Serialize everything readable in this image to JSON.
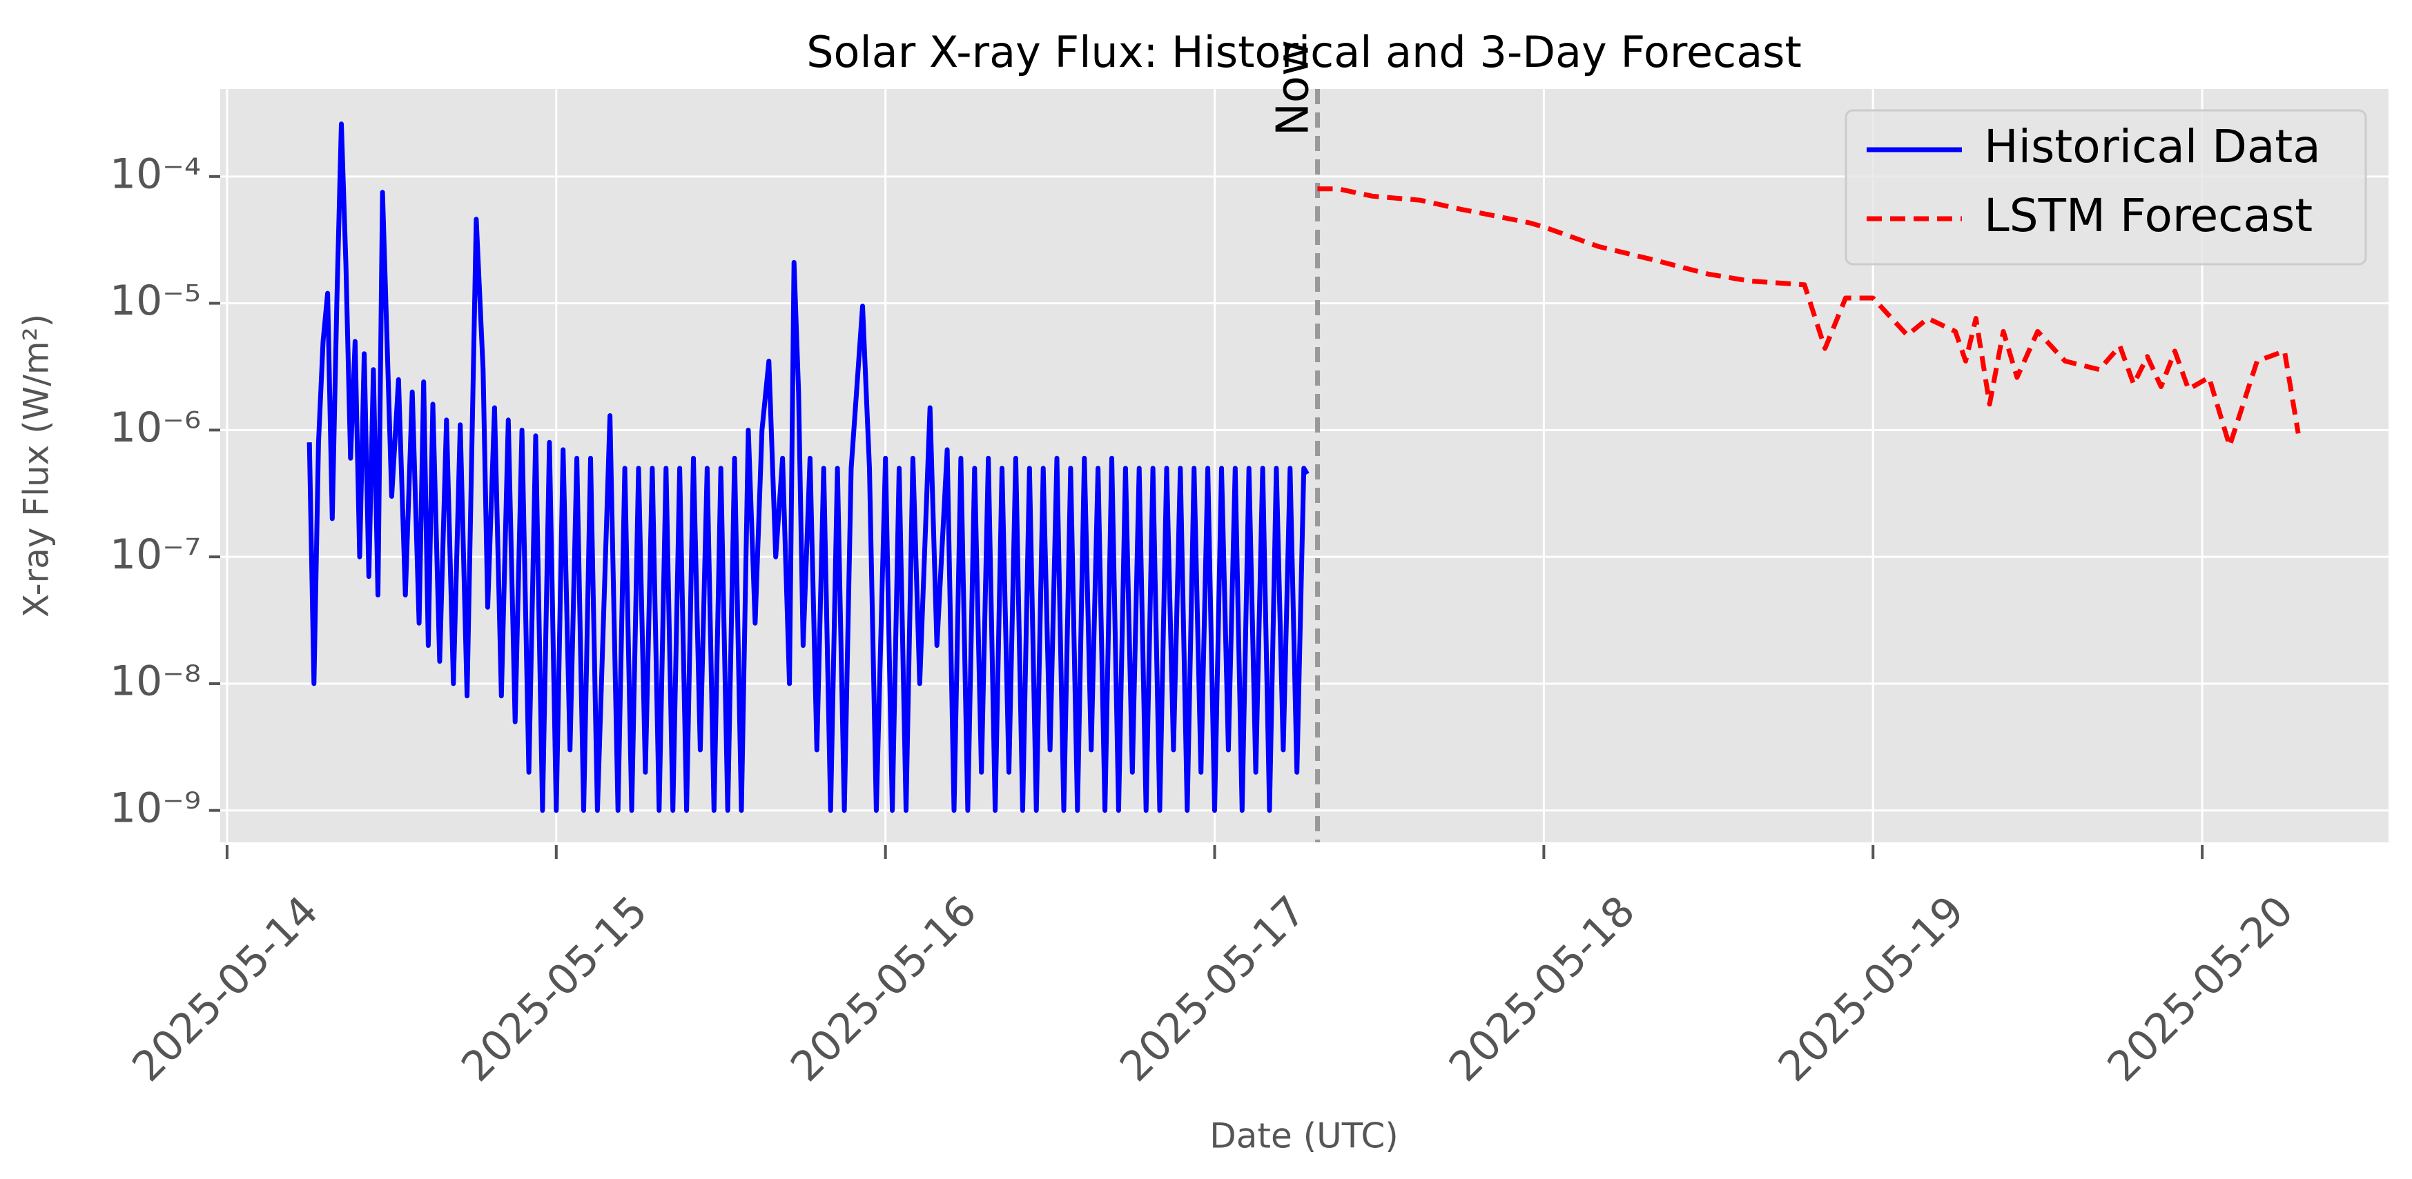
{
  "chart_data": {
    "type": "line",
    "title": "Solar X-ray Flux: Historical and 3-Day Forecast",
    "xlabel": "Date (UTC)",
    "ylabel": "X-ray Flux (W/m²)",
    "yscale": "log",
    "grid": true,
    "legend": "upper right",
    "xlim": [
      "2025-05-13 23:30",
      "2025-05-20 13:35"
    ],
    "xticks": [
      "2025-05-14",
      "2025-05-15",
      "2025-05-16",
      "2025-05-17",
      "2025-05-18",
      "2025-05-19",
      "2025-05-20"
    ],
    "ylim": [
      5.6e-10,
      0.00049
    ],
    "yticks": [
      {
        "value": 1e-09,
        "label": "10⁻⁹"
      },
      {
        "value": 1e-08,
        "label": "10⁻⁸"
      },
      {
        "value": 1e-07,
        "label": "10⁻⁷"
      },
      {
        "value": 1e-06,
        "label": "10⁻⁶"
      },
      {
        "value": 1e-05,
        "label": "10⁻⁵"
      },
      {
        "value": 0.0001,
        "label": "10⁻⁴"
      }
    ],
    "annotations": [
      {
        "text": "Now",
        "x": "2025-05-17 07:30"
      }
    ],
    "series": [
      {
        "name": "Historical Data",
        "color": "#0000ff",
        "style": "solid",
        "x": [
          "2025-05-14 06:00",
          "2025-05-14 06:20",
          "2025-05-14 06:40",
          "2025-05-14 07:00",
          "2025-05-14 07:20",
          "2025-05-14 07:40",
          "2025-05-14 08:00",
          "2025-05-14 08:20",
          "2025-05-14 08:40",
          "2025-05-14 09:00",
          "2025-05-14 09:20",
          "2025-05-14 09:40",
          "2025-05-14 10:00",
          "2025-05-14 10:20",
          "2025-05-14 10:40",
          "2025-05-14 11:00",
          "2025-05-14 11:20",
          "2025-05-14 11:40",
          "2025-05-14 12:00",
          "2025-05-14 12:30",
          "2025-05-14 13:00",
          "2025-05-14 13:30",
          "2025-05-14 14:00",
          "2025-05-14 14:20",
          "2025-05-14 14:40",
          "2025-05-14 15:00",
          "2025-05-14 15:30",
          "2025-05-14 16:00",
          "2025-05-14 16:30",
          "2025-05-14 17:00",
          "2025-05-14 17:30",
          "2025-05-14 18:10",
          "2025-05-14 18:40",
          "2025-05-14 19:00",
          "2025-05-14 19:30",
          "2025-05-14 20:00",
          "2025-05-14 20:30",
          "2025-05-14 21:00",
          "2025-05-14 21:30",
          "2025-05-14 22:00",
          "2025-05-14 22:30",
          "2025-05-14 23:00",
          "2025-05-14 23:30",
          "2025-05-15 00:00",
          "2025-05-15 00:30",
          "2025-05-15 01:00",
          "2025-05-15 01:30",
          "2025-05-15 02:00",
          "2025-05-15 02:30",
          "2025-05-15 03:00",
          "2025-05-15 03:55",
          "2025-05-15 04:30",
          "2025-05-15 05:00",
          "2025-05-15 05:30",
          "2025-05-15 06:00",
          "2025-05-15 06:30",
          "2025-05-15 07:00",
          "2025-05-15 07:30",
          "2025-05-15 08:00",
          "2025-05-15 08:30",
          "2025-05-15 09:00",
          "2025-05-15 09:30",
          "2025-05-15 10:00",
          "2025-05-15 10:30",
          "2025-05-15 11:00",
          "2025-05-15 11:30",
          "2025-05-15 12:00",
          "2025-05-15 12:30",
          "2025-05-15 13:00",
          "2025-05-15 13:30",
          "2025-05-15 14:00",
          "2025-05-15 14:30",
          "2025-05-15 15:00",
          "2025-05-15 15:30",
          "2025-05-15 16:00",
          "2025-05-15 16:30",
          "2025-05-15 17:00",
          "2025-05-15 17:20",
          "2025-05-15 17:40",
          "2025-05-15 18:00",
          "2025-05-15 18:30",
          "2025-05-15 19:00",
          "2025-05-15 19:30",
          "2025-05-15 20:00",
          "2025-05-15 20:30",
          "2025-05-15 21:00",
          "2025-05-15 21:30",
          "2025-05-15 22:20",
          "2025-05-15 22:50",
          "2025-05-15 23:20",
          "2025-05-16 00:00",
          "2025-05-16 00:30",
          "2025-05-16 01:00",
          "2025-05-16 01:30",
          "2025-05-16 02:00",
          "2025-05-16 02:30",
          "2025-05-16 03:15",
          "2025-05-16 03:45",
          "2025-05-16 04:30",
          "2025-05-16 05:00",
          "2025-05-16 05:30",
          "2025-05-16 06:00",
          "2025-05-16 06:30",
          "2025-05-16 07:00",
          "2025-05-16 07:30",
          "2025-05-16 08:00",
          "2025-05-16 08:30",
          "2025-05-16 09:00",
          "2025-05-16 09:30",
          "2025-05-16 10:00",
          "2025-05-16 10:30",
          "2025-05-16 11:00",
          "2025-05-16 11:30",
          "2025-05-16 12:00",
          "2025-05-16 12:30",
          "2025-05-16 13:00",
          "2025-05-16 13:30",
          "2025-05-16 14:00",
          "2025-05-16 14:30",
          "2025-05-16 15:00",
          "2025-05-16 15:30",
          "2025-05-16 16:00",
          "2025-05-16 16:30",
          "2025-05-16 17:00",
          "2025-05-16 17:30",
          "2025-05-16 18:00",
          "2025-05-16 18:30",
          "2025-05-16 19:00",
          "2025-05-16 19:30",
          "2025-05-16 20:00",
          "2025-05-16 20:30",
          "2025-05-16 21:00",
          "2025-05-16 21:30",
          "2025-05-16 22:00",
          "2025-05-16 22:30",
          "2025-05-16 23:00",
          "2025-05-16 23:30",
          "2025-05-17 00:00",
          "2025-05-17 00:30",
          "2025-05-17 01:00",
          "2025-05-17 01:30",
          "2025-05-17 02:00",
          "2025-05-17 02:30",
          "2025-05-17 03:00",
          "2025-05-17 03:30",
          "2025-05-17 04:00",
          "2025-05-17 04:30",
          "2025-05-17 05:00",
          "2025-05-17 05:30",
          "2025-05-17 06:00",
          "2025-05-17 06:30",
          "2025-05-17 06:45"
        ],
        "values": [
          8e-07,
          1e-08,
          8e-07,
          5e-06,
          1.2e-05,
          2e-07,
          1e-05,
          0.00026,
          2e-05,
          6e-07,
          5e-06,
          1e-07,
          4e-06,
          7e-08,
          3e-06,
          5e-08,
          7.5e-05,
          5e-06,
          3e-07,
          2.5e-06,
          5e-08,
          2e-06,
          3e-08,
          2.4e-06,
          2e-08,
          1.6e-06,
          1.5e-08,
          1.2e-06,
          1e-08,
          1.1e-06,
          8e-09,
          4.6e-05,
          3e-06,
          4e-08,
          1.5e-06,
          8e-09,
          1.2e-06,
          5e-09,
          1e-06,
          2e-09,
          9e-07,
          1e-09,
          8e-07,
          1e-09,
          7e-07,
          3e-09,
          6e-07,
          1e-09,
          6e-07,
          1e-09,
          1.3e-06,
          1e-09,
          5e-07,
          1e-09,
          5e-07,
          2e-09,
          5e-07,
          1e-09,
          5e-07,
          1e-09,
          5e-07,
          1e-09,
          6e-07,
          3e-09,
          5e-07,
          1e-09,
          5e-07,
          1e-09,
          6e-07,
          1e-09,
          1e-06,
          3e-08,
          1e-06,
          3.5e-06,
          1e-07,
          6e-07,
          1e-08,
          2.1e-05,
          2e-06,
          2e-08,
          6e-07,
          3e-09,
          5e-07,
          1e-09,
          5e-07,
          1e-09,
          5e-07,
          9.5e-06,
          5e-07,
          1e-09,
          6e-07,
          1e-09,
          5e-07,
          1e-09,
          6e-07,
          1e-08,
          1.5e-06,
          2e-08,
          7e-07,
          1e-09,
          6e-07,
          1e-09,
          5e-07,
          2e-09,
          6e-07,
          1e-09,
          5e-07,
          2e-09,
          6e-07,
          1e-09,
          5e-07,
          1e-09,
          5e-07,
          3e-09,
          6e-07,
          1e-09,
          5e-07,
          1e-09,
          6e-07,
          3e-09,
          5e-07,
          1e-09,
          6e-07,
          1e-09,
          5e-07,
          2e-09,
          5e-07,
          1e-09,
          5e-07,
          1e-09,
          5e-07,
          3e-09,
          5e-07,
          1e-09,
          5e-07,
          2e-09,
          5e-07,
          1e-09,
          5e-07,
          3e-09,
          5e-07,
          1e-09,
          5e-07,
          2e-09,
          5e-07,
          1e-09,
          5e-07,
          3e-09,
          5e-07,
          2e-09,
          5e-07,
          4.5e-07
        ]
      },
      {
        "name": "LSTM Forecast",
        "color": "#ff0000",
        "style": "dashed",
        "x": [
          "2025-05-17 07:30",
          "2025-05-17 09:00",
          "2025-05-17 11:30",
          "2025-05-17 15:00",
          "2025-05-17 18:00",
          "2025-05-17 20:00",
          "2025-05-17 23:00",
          "2025-05-18 00:00",
          "2025-05-18 04:00",
          "2025-05-18 08:00",
          "2025-05-18 12:00",
          "2025-05-18 15:00",
          "2025-05-18 19:00",
          "2025-05-18 20:30",
          "2025-05-18 22:00",
          "2025-05-19 00:00",
          "2025-05-19 02:30",
          "2025-05-19 04:00",
          "2025-05-19 06:00",
          "2025-05-19 06:45",
          "2025-05-19 07:30",
          "2025-05-19 08:30",
          "2025-05-19 09:30",
          "2025-05-19 10:30",
          "2025-05-19 12:00",
          "2025-05-19 14:00",
          "2025-05-19 16:30",
          "2025-05-19 18:00",
          "2025-05-19 19:00",
          "2025-05-19 20:00",
          "2025-05-19 21:00",
          "2025-05-19 22:00",
          "2025-05-19 23:00",
          "2025-05-20 00:30",
          "2025-05-20 02:00",
          "2025-05-20 04:00",
          "2025-05-20 06:00",
          "2025-05-20 07:00"
        ],
        "values": [
          8e-05,
          8e-05,
          7e-05,
          6.5e-05,
          5.5e-05,
          5e-05,
          4.3e-05,
          4e-05,
          2.8e-05,
          2.2e-05,
          1.7e-05,
          1.5e-05,
          1.4e-05,
          4.4e-06,
          1.1e-05,
          1.1e-05,
          5.6e-06,
          7.6e-06,
          6e-06,
          3.5e-06,
          7.6e-06,
          1.6e-06,
          6e-06,
          2.6e-06,
          6e-06,
          3.5e-06,
          3e-06,
          4.6e-06,
          2.3e-06,
          3.8e-06,
          2.2e-06,
          4.2e-06,
          2.1e-06,
          2.6e-06,
          7.5e-07,
          3.5e-06,
          4.2e-06,
          9.4e-07
        ]
      }
    ]
  }
}
